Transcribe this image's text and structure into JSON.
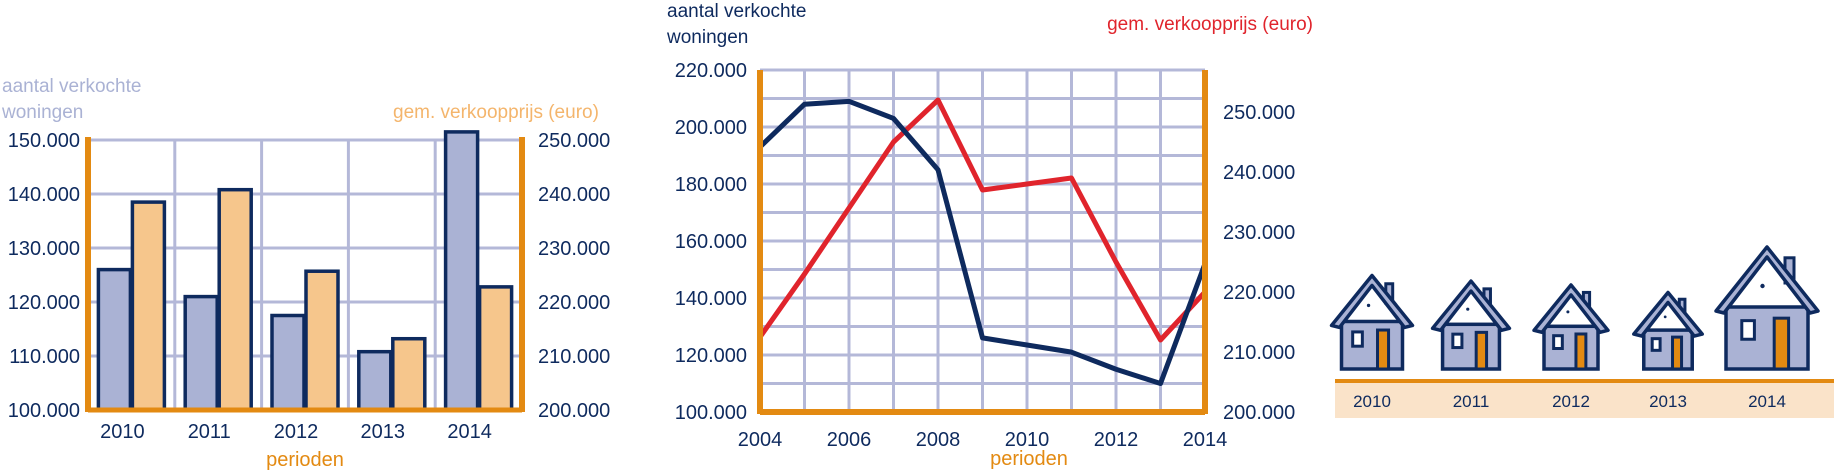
{
  "colors": {
    "navy": "#0e2a5e",
    "orange": "#e38a12",
    "lavender": "#aab2d4",
    "peach": "#f6c68c",
    "red": "#e0242c",
    "grid": "#b4b8d8",
    "ground": "#fae3c9",
    "muted": "#aab2d4"
  },
  "chart_data": [
    {
      "type": "bar",
      "categories": [
        "2010",
        "2011",
        "2012",
        "2013",
        "2014"
      ],
      "series": [
        {
          "name": "aantal verkochte woningen",
          "axis": "left",
          "values": [
            126000,
            121000,
            117500,
            110800,
            151500
          ]
        },
        {
          "name": "gem. verkoopprijs (euro)",
          "axis": "right",
          "values": [
            238500,
            240800,
            225700,
            213200,
            222800
          ]
        }
      ],
      "ylabel_left": "aantal verkochte woningen",
      "ylabel_right": "gem. verkoopprijs (euro)",
      "xlabel": "perioden",
      "ylim_left": [
        100000,
        150000
      ],
      "ylim_right": [
        200000,
        250000
      ],
      "yticks_left": [
        "100.000",
        "110.000",
        "120.000",
        "130.000",
        "140.000",
        "150.000"
      ],
      "yticks_right": [
        "200.000",
        "210.000",
        "220.000",
        "230.000",
        "240.000",
        "250.000"
      ],
      "grid": true
    },
    {
      "type": "line",
      "x": [
        2004,
        2005,
        2006,
        2007,
        2008,
        2009,
        2010,
        2011,
        2012,
        2013,
        2014
      ],
      "series": [
        {
          "name": "aantal verkochte woningen",
          "axis": "left",
          "values": [
            193000,
            208000,
            209000,
            203000,
            185000,
            126000,
            123500,
            121000,
            115000,
            110000,
            152000
          ]
        },
        {
          "name": "gem. verkoopprijs (euro)",
          "axis": "right",
          "values": [
            212500,
            223000,
            234000,
            245000,
            252000,
            237000,
            238000,
            239000,
            225000,
            212000,
            220000
          ]
        }
      ],
      "ylabel_left": "aantal verkochte woningen",
      "ylabel_right": "gem. verkoopprijs (euro)",
      "xlabel": "perioden",
      "xticks": [
        "2004",
        "2006",
        "2008",
        "2010",
        "2012",
        "2014"
      ],
      "ylim_left": [
        100000,
        220000
      ],
      "ylim_right": [
        200000,
        257000
      ],
      "yticks_left": [
        "100.000",
        "120.000",
        "140.000",
        "160.000",
        "180.000",
        "200.000",
        "220.000"
      ],
      "yticks_right": [
        "200.000",
        "210.000",
        "220.000",
        "230.000",
        "240.000",
        "250.000"
      ],
      "yticks_right_values": [
        200000,
        210000,
        220000,
        230000,
        240000,
        250000
      ],
      "grid": true
    },
    {
      "type": "pictogram",
      "categories": [
        "2010",
        "2011",
        "2012",
        "2013",
        "2014"
      ],
      "values": [
        126000,
        121000,
        117500,
        110800,
        151500
      ]
    }
  ]
}
